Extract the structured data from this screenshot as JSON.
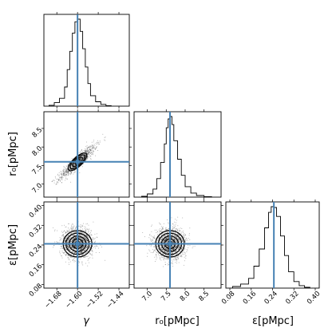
{
  "chart_data": {
    "type": "corner",
    "parameters": [
      {
        "key": "gamma",
        "label": "γ",
        "range": [
          -1.73,
          -1.4
        ],
        "ticks": [
          -1.68,
          -1.6,
          -1.52,
          -1.44
        ],
        "tick_labels": [
          "−1.68",
          "−1.60",
          "−1.52",
          "−1.44"
        ],
        "truth": -1.6
      },
      {
        "key": "r0",
        "label": "r₀[pMpc]",
        "range": [
          6.65,
          8.95
        ],
        "ticks": [
          7.0,
          7.5,
          8.0,
          8.5
        ],
        "tick_labels": [
          "7.0",
          "7.5",
          "8.0",
          "8.5"
        ],
        "truth": 7.6
      },
      {
        "key": "eps",
        "label": "ε[pMpc]",
        "range": [
          0.065,
          0.415
        ],
        "ticks": [
          0.08,
          0.16,
          0.24,
          0.32,
          0.4
        ],
        "tick_labels": [
          "0.08",
          "0.16",
          "0.24",
          "0.32",
          "0.40"
        ],
        "truth": 0.245
      }
    ],
    "histograms": [
      {
        "param": "gamma",
        "bin_edges": [
          -1.71,
          -1.69,
          -1.67,
          -1.65,
          -1.64,
          -1.63,
          -1.62,
          -1.61,
          -1.6,
          -1.59,
          -1.58,
          -1.57,
          -1.56,
          -1.55,
          -1.53,
          -1.51,
          -1.49,
          -1.47
        ],
        "counts": [
          0.01,
          0.04,
          0.09,
          0.22,
          0.42,
          0.63,
          0.84,
          0.97,
          1.0,
          0.86,
          0.66,
          0.45,
          0.26,
          0.12,
          0.05,
          0.02,
          0.005
        ]
      },
      {
        "param": "r0",
        "bin_edges": [
          6.85,
          7.0,
          7.15,
          7.25,
          7.35,
          7.45,
          7.5,
          7.55,
          7.6,
          7.65,
          7.7,
          7.8,
          7.9,
          8.0,
          8.15,
          8.3,
          8.5,
          8.7
        ],
        "counts": [
          0.01,
          0.04,
          0.1,
          0.23,
          0.43,
          0.66,
          0.86,
          0.97,
          1.0,
          0.9,
          0.7,
          0.47,
          0.27,
          0.13,
          0.05,
          0.02,
          0.005
        ]
      },
      {
        "param": "eps",
        "bin_edges": [
          0.09,
          0.12,
          0.15,
          0.17,
          0.19,
          0.21,
          0.225,
          0.235,
          0.245,
          0.255,
          0.27,
          0.285,
          0.3,
          0.32,
          0.34,
          0.36,
          0.38
        ],
        "counts": [
          0.02,
          0.05,
          0.12,
          0.27,
          0.48,
          0.74,
          0.93,
          1.0,
          0.99,
          0.88,
          0.64,
          0.4,
          0.2,
          0.08,
          0.03,
          0.01
        ]
      }
    ],
    "joint": [
      {
        "x": "gamma",
        "y": "r0",
        "center": [
          -1.6,
          7.6
        ],
        "correlated": true
      },
      {
        "x": "gamma",
        "y": "eps",
        "center": [
          -1.6,
          0.245
        ],
        "correlated": false
      },
      {
        "x": "r0",
        "y": "eps",
        "center": [
          7.6,
          0.245
        ],
        "correlated": false
      }
    ]
  }
}
